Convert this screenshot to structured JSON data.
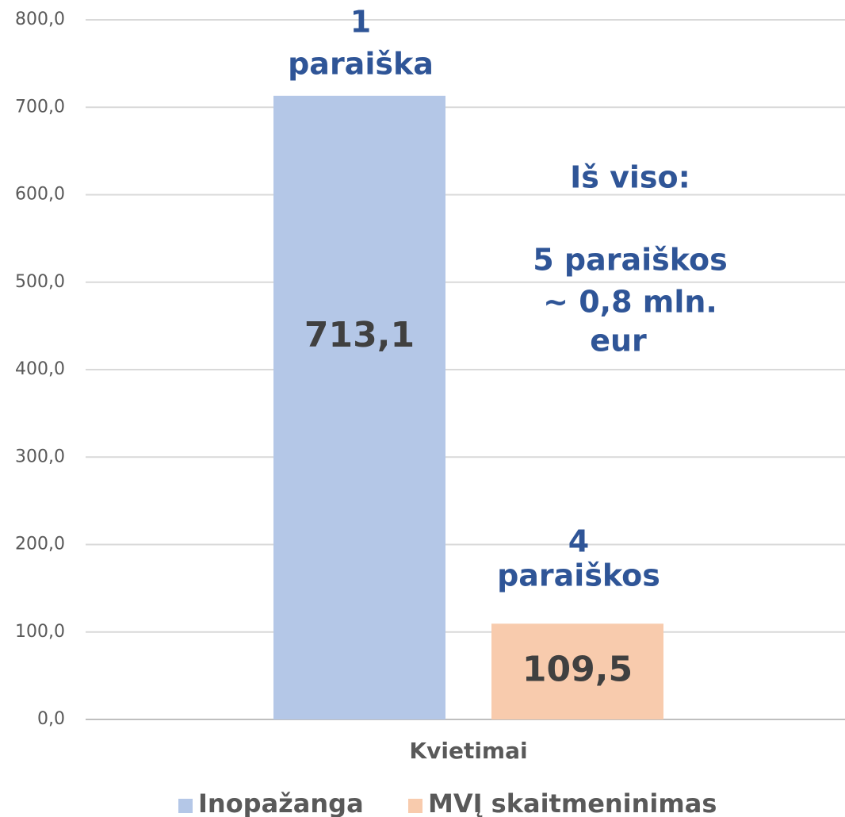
{
  "chart_data": {
    "type": "bar",
    "categories": [
      "Kvietimai"
    ],
    "series": [
      {
        "name": "Inopažanga",
        "color": "#b4c7e7",
        "values": [
          713.1
        ],
        "value_labels": [
          "713,1"
        ]
      },
      {
        "name": "MVĮ skaitmeninimas",
        "color": "#f8cbad",
        "values": [
          109.5
        ],
        "value_labels": [
          "109,5"
        ]
      }
    ],
    "ylim": [
      0,
      800
    ],
    "yticks": [
      {
        "value": 0,
        "label": "0,0"
      },
      {
        "value": 100,
        "label": "100,0"
      },
      {
        "value": 200,
        "label": "200,0"
      },
      {
        "value": 300,
        "label": "300,0"
      },
      {
        "value": 400,
        "label": "400,0"
      },
      {
        "value": 500,
        "label": "500,0"
      },
      {
        "value": 600,
        "label": "600,0"
      },
      {
        "value": 700,
        "label": "700,0"
      },
      {
        "value": 800,
        "label": "800,0"
      }
    ],
    "grid": true,
    "legend": "bottom",
    "annotations": [
      [
        "1",
        "paraiška"
      ],
      [
        "4",
        "paraiškos"
      ],
      [
        "Iš viso:",
        "5 paraiškos",
        "~ 0,8 mln.",
        "eur"
      ]
    ]
  }
}
